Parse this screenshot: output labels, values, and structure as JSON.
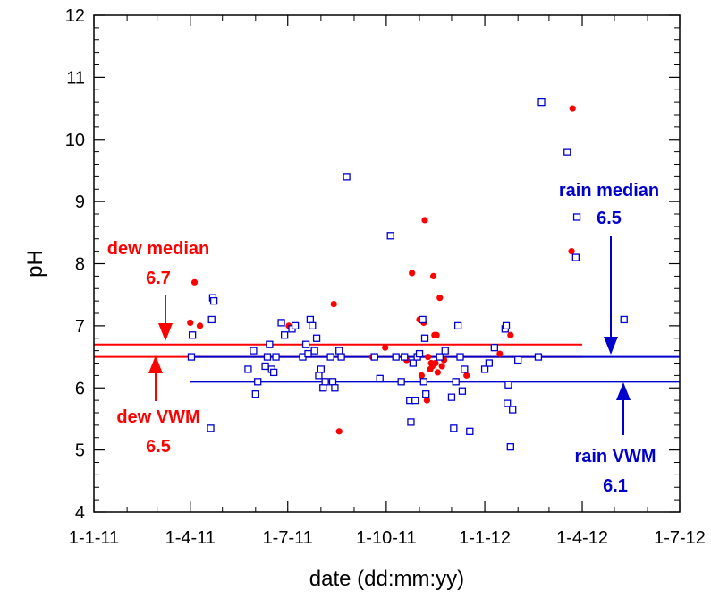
{
  "chart_data": {
    "type": "scatter",
    "title": "",
    "xlabel": "date (dd:mm:yy)",
    "ylabel": "pH",
    "xlim": [
      "2011-01-01",
      "2012-07-01"
    ],
    "ylim": [
      4,
      12
    ],
    "x_ticks": [
      "2011-01-01",
      "2011-04-01",
      "2011-07-01",
      "2011-10-01",
      "2012-01-01",
      "2012-04-01",
      "2012-07-01"
    ],
    "x_tick_labels": [
      "1-1-11",
      "1-4-11",
      "1-7-11",
      "1-10-11",
      "1-1-12",
      "1-4-12",
      "1-7-12"
    ],
    "y_ticks": [
      4,
      5,
      6,
      7,
      8,
      9,
      10,
      11,
      12
    ],
    "grid": false,
    "colors": {
      "dew": "#ff0000",
      "rain": "#0000cc"
    },
    "series": [
      {
        "name": "dew",
        "marker": "filled-circle",
        "points": [
          [
            "2011-04-01",
            7.05
          ],
          [
            "2011-04-05",
            7.7
          ],
          [
            "2011-04-10",
            7.0
          ],
          [
            "2011-07-02",
            7.0
          ],
          [
            "2011-08-13",
            7.35
          ],
          [
            "2011-08-18",
            5.3
          ],
          [
            "2011-09-18",
            6.5
          ],
          [
            "2011-09-30",
            6.65
          ],
          [
            "2011-10-20",
            6.45
          ],
          [
            "2011-10-25",
            7.85
          ],
          [
            "2011-11-01",
            7.1
          ],
          [
            "2011-11-03",
            6.2
          ],
          [
            "2011-11-05",
            7.05
          ],
          [
            "2011-11-06",
            8.7
          ],
          [
            "2011-11-08",
            5.8
          ],
          [
            "2011-11-09",
            6.5
          ],
          [
            "2011-11-11",
            6.3
          ],
          [
            "2011-11-12",
            6.4
          ],
          [
            "2011-11-13",
            6.35
          ],
          [
            "2011-11-14",
            7.8
          ],
          [
            "2011-11-15",
            6.85
          ],
          [
            "2011-11-16",
            6.4
          ],
          [
            "2011-11-17",
            6.85
          ],
          [
            "2011-11-18",
            6.25
          ],
          [
            "2011-11-19",
            6.5
          ],
          [
            "2011-11-20",
            7.45
          ],
          [
            "2011-11-22",
            6.35
          ],
          [
            "2011-11-24",
            6.45
          ],
          [
            "2011-12-15",
            6.2
          ],
          [
            "2012-01-15",
            6.55
          ],
          [
            "2012-01-25",
            6.85
          ],
          [
            "2012-03-22",
            8.2
          ],
          [
            "2012-03-23",
            10.5
          ]
        ]
      },
      {
        "name": "rain",
        "marker": "open-square",
        "points": [
          [
            "2011-04-02",
            6.5
          ],
          [
            "2011-04-03",
            6.85
          ],
          [
            "2011-04-20",
            5.35
          ],
          [
            "2011-04-21",
            7.1
          ],
          [
            "2011-04-22",
            7.45
          ],
          [
            "2011-04-23",
            7.4
          ],
          [
            "2011-05-25",
            6.3
          ],
          [
            "2011-05-30",
            6.6
          ],
          [
            "2011-06-01",
            5.9
          ],
          [
            "2011-06-03",
            6.1
          ],
          [
            "2011-06-10",
            6.35
          ],
          [
            "2011-06-12",
            6.5
          ],
          [
            "2011-06-14",
            6.7
          ],
          [
            "2011-06-16",
            6.3
          ],
          [
            "2011-06-18",
            6.25
          ],
          [
            "2011-06-20",
            6.5
          ],
          [
            "2011-06-25",
            7.05
          ],
          [
            "2011-06-28",
            6.85
          ],
          [
            "2011-07-05",
            6.95
          ],
          [
            "2011-07-08",
            7.0
          ],
          [
            "2011-07-15",
            6.5
          ],
          [
            "2011-07-18",
            6.7
          ],
          [
            "2011-07-20",
            6.55
          ],
          [
            "2011-07-22",
            7.1
          ],
          [
            "2011-07-24",
            7.0
          ],
          [
            "2011-07-26",
            6.6
          ],
          [
            "2011-07-28",
            6.8
          ],
          [
            "2011-07-30",
            6.2
          ],
          [
            "2011-08-01",
            6.3
          ],
          [
            "2011-08-03",
            6.0
          ],
          [
            "2011-08-05",
            6.1
          ],
          [
            "2011-08-10",
            6.5
          ],
          [
            "2011-08-12",
            6.1
          ],
          [
            "2011-08-14",
            6.0
          ],
          [
            "2011-08-18",
            6.6
          ],
          [
            "2011-08-20",
            6.5
          ],
          [
            "2011-08-25",
            9.4
          ],
          [
            "2011-09-20",
            6.5
          ],
          [
            "2011-09-25",
            6.15
          ],
          [
            "2011-10-05",
            8.45
          ],
          [
            "2011-10-10",
            6.5
          ],
          [
            "2011-10-15",
            6.1
          ],
          [
            "2011-10-18",
            6.5
          ],
          [
            "2011-10-23",
            5.8
          ],
          [
            "2011-10-24",
            5.45
          ],
          [
            "2011-10-26",
            6.4
          ],
          [
            "2011-10-28",
            5.8
          ],
          [
            "2011-10-30",
            6.5
          ],
          [
            "2011-11-01",
            6.55
          ],
          [
            "2011-11-04",
            7.1
          ],
          [
            "2011-11-05",
            6.1
          ],
          [
            "2011-11-06",
            6.8
          ],
          [
            "2011-11-07",
            5.9
          ],
          [
            "2011-11-20",
            6.5
          ],
          [
            "2011-11-25",
            6.6
          ],
          [
            "2011-12-01",
            5.85
          ],
          [
            "2011-12-03",
            5.35
          ],
          [
            "2011-12-05",
            6.1
          ],
          [
            "2011-12-07",
            7.0
          ],
          [
            "2011-12-09",
            6.5
          ],
          [
            "2011-12-11",
            5.95
          ],
          [
            "2011-12-13",
            6.3
          ],
          [
            "2011-12-18",
            5.3
          ],
          [
            "2012-01-01",
            6.3
          ],
          [
            "2012-01-05",
            6.4
          ],
          [
            "2012-01-10",
            6.65
          ],
          [
            "2012-01-20",
            6.95
          ],
          [
            "2012-01-21",
            7.0
          ],
          [
            "2012-01-22",
            5.75
          ],
          [
            "2012-01-23",
            6.05
          ],
          [
            "2012-01-25",
            5.05
          ],
          [
            "2012-01-27",
            5.65
          ],
          [
            "2012-02-01",
            6.45
          ],
          [
            "2012-02-20",
            6.5
          ],
          [
            "2012-02-23",
            10.6
          ],
          [
            "2012-03-18",
            9.8
          ],
          [
            "2012-03-26",
            8.1
          ],
          [
            "2012-03-27",
            8.75
          ],
          [
            "2012-05-10",
            7.1
          ]
        ]
      }
    ],
    "reference_lines": [
      {
        "series": "dew",
        "stat": "median",
        "value": 6.7,
        "x_start": "2011-01-01",
        "x_end": "2012-04-01"
      },
      {
        "series": "dew",
        "stat": "VWM",
        "value": 6.5,
        "x_start": "2011-01-01",
        "x_end": "2012-04-01"
      },
      {
        "series": "rain",
        "stat": "median",
        "value": 6.5,
        "x_start": "2011-04-01",
        "x_end": "2012-07-01"
      },
      {
        "series": "rain",
        "stat": "VWM",
        "value": 6.1,
        "x_start": "2011-04-01",
        "x_end": "2012-07-01"
      }
    ],
    "annotations": [
      {
        "id": "dew-median",
        "label": "dew median",
        "value": "6.7",
        "color": "#ff0000",
        "arrow": "down",
        "target_y": 6.7
      },
      {
        "id": "dew-vwm",
        "label": "dew VWM",
        "value": "6.5",
        "color": "#ff0000",
        "arrow": "up",
        "target_y": 6.5
      },
      {
        "id": "rain-median",
        "label": "rain median",
        "value": "6.5",
        "color": "#0000cc",
        "arrow": "down",
        "target_y": 6.5
      },
      {
        "id": "rain-vwm",
        "label": "rain VWM",
        "value": "6.1",
        "color": "#0000cc",
        "arrow": "up",
        "target_y": 6.1
      }
    ]
  }
}
